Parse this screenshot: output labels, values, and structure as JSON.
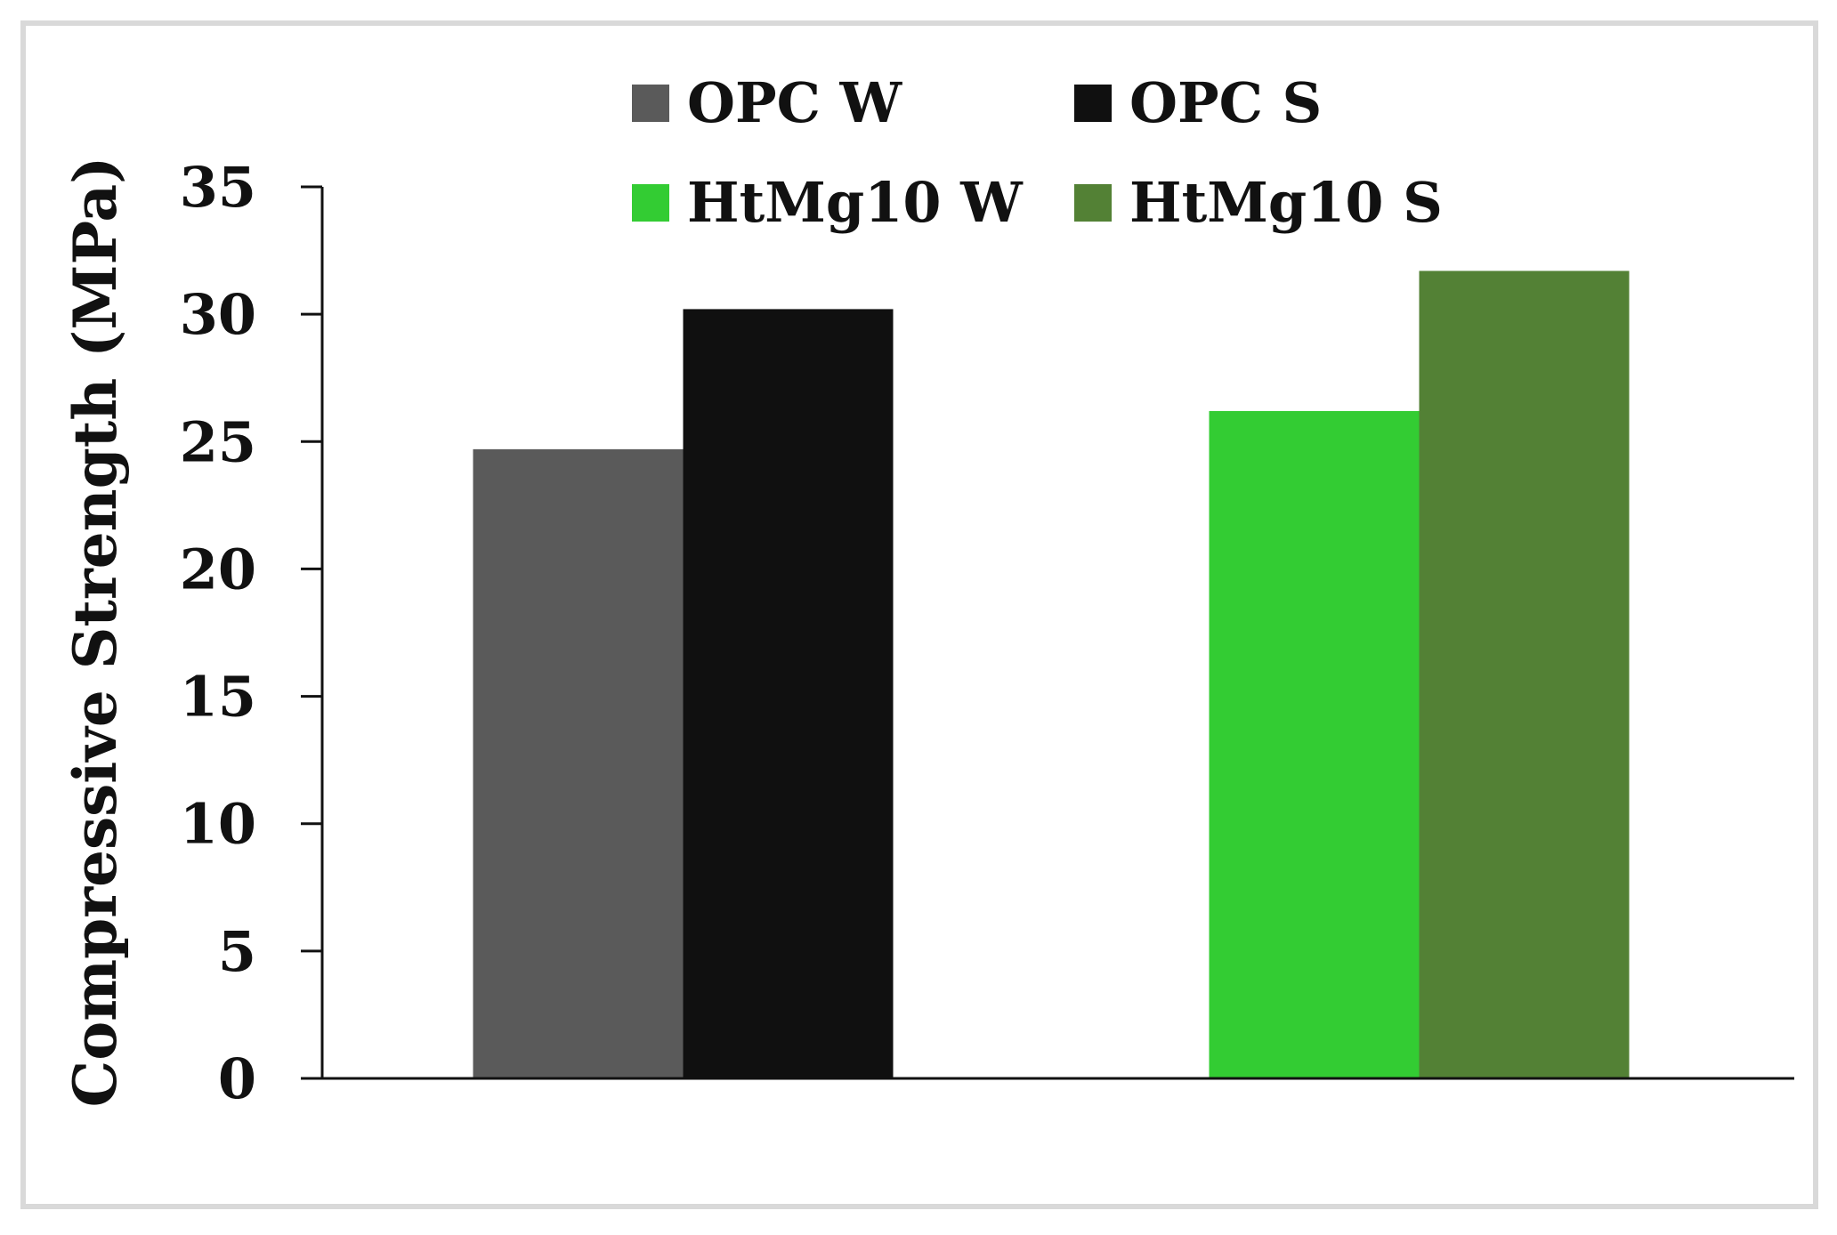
{
  "chart_data": {
    "type": "bar",
    "title": "",
    "xlabel": "",
    "ylabel": "Compressive Strength (MPa)",
    "ylim": [
      0,
      35
    ],
    "yticks": [
      "0",
      "5",
      "10",
      "15",
      "20",
      "25",
      "30",
      "35"
    ],
    "grid": false,
    "legend_placement": "top",
    "categories": [
      "",
      ""
    ],
    "series": [
      {
        "name": "OPC W",
        "color": "#5a5a5a",
        "values": [
          24.7,
          null
        ]
      },
      {
        "name": "OPC S",
        "color": "#101010",
        "values": [
          30.2,
          null
        ]
      },
      {
        "name": "HtMg10 W",
        "color": "#33cc33",
        "values": [
          null,
          26.2
        ]
      },
      {
        "name": "HtMg10 S",
        "color": "#538135",
        "values": [
          null,
          31.7
        ]
      }
    ]
  }
}
